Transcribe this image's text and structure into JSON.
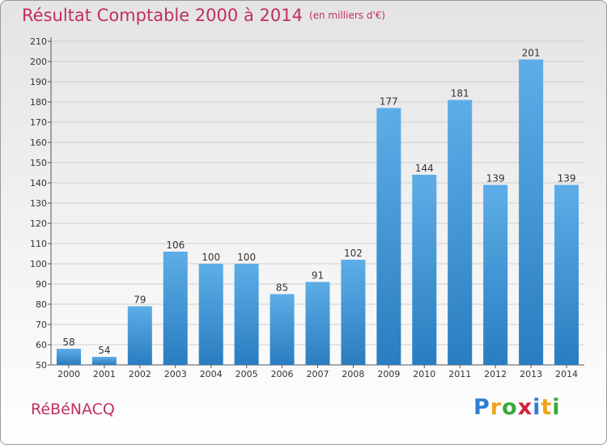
{
  "header": {
    "title": "Résultat Comptable 2000 à 2014",
    "subtitle": "(en milliers d'€)"
  },
  "footer": {
    "town": "RéBéNACQ",
    "brand_letters": [
      "P",
      "r",
      "o",
      "x",
      "i",
      "t",
      "i"
    ],
    "brand_colors": [
      "#2e7fd4",
      "#f0a21c",
      "#3aa93c",
      "#d4213d",
      "#2e7fd4",
      "#f0a21c",
      "#3aa93c"
    ]
  },
  "colors": {
    "accent": "#c0305a",
    "bar_top": "#5dade8",
    "bar_bottom": "#2a7dbf"
  },
  "chart_data": {
    "type": "bar",
    "title": "Résultat Comptable 2000 à 2014",
    "subtitle": "(en milliers d'€)",
    "categories": [
      "2000",
      "2001",
      "2002",
      "2003",
      "2004",
      "2005",
      "2006",
      "2007",
      "2008",
      "2009",
      "2010",
      "2011",
      "2012",
      "2013",
      "2014"
    ],
    "values": [
      58,
      54,
      79,
      106,
      100,
      100,
      85,
      91,
      102,
      177,
      144,
      181,
      139,
      201,
      139
    ],
    "ylim": [
      50,
      210
    ],
    "yticks": [
      50,
      60,
      70,
      80,
      90,
      100,
      110,
      120,
      130,
      140,
      150,
      160,
      170,
      180,
      190,
      200,
      210
    ],
    "grid": true,
    "data_labels": true
  }
}
